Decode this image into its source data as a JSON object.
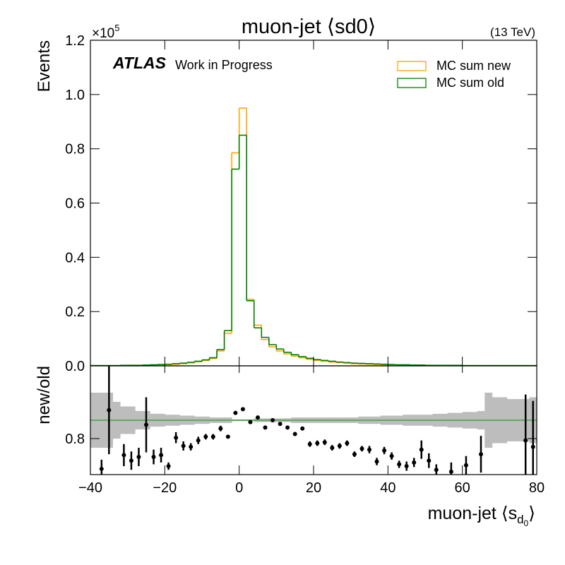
{
  "chart_data": [
    {
      "type": "histogram",
      "title": "muon-jet ⟨sd0⟩",
      "energy": "(13 TeV)",
      "experiment": "ATLAS",
      "status": "Work in Progress",
      "ylabel": "Events",
      "y_scale": {
        "base": "×10",
        "exponent": "5"
      },
      "bins": [
        -40,
        -38,
        -36,
        -34,
        -32,
        -30,
        -28,
        -26,
        -24,
        -22,
        -20,
        -18,
        -16,
        -14,
        -12,
        -10,
        -8,
        -6,
        -4,
        -2,
        0,
        2,
        4,
        6,
        8,
        10,
        12,
        14,
        16,
        18,
        20,
        22,
        24,
        26,
        28,
        30,
        32,
        34,
        36,
        38,
        40,
        42,
        44,
        46,
        48,
        50,
        52,
        54,
        56,
        58,
        60,
        62,
        64,
        66,
        68,
        70,
        72,
        74,
        76,
        78,
        80
      ],
      "xlim": [
        -40,
        80
      ],
      "ylim": [
        0,
        1.2
      ],
      "yticks": [
        {
          "value": 0,
          "label": "0.0"
        },
        0.2,
        0.4,
        0.6,
        0.8,
        {
          "value": 1,
          "label": "1.0"
        },
        1.2
      ],
      "legend": "upper right",
      "series": [
        {
          "name": "MC sum new",
          "color": "#ffa500",
          "values": [
            0.001,
            0.001,
            0.001,
            0.001,
            0.001,
            0.002,
            0.002,
            0.002,
            0.003,
            0.004,
            0.005,
            0.006,
            0.008,
            0.011,
            0.015,
            0.02,
            0.027,
            0.055,
            0.12,
            0.785,
            0.95,
            0.245,
            0.15,
            0.097,
            0.07,
            0.055,
            0.044,
            0.036,
            0.03,
            0.024,
            0.02,
            0.017,
            0.014,
            0.012,
            0.01,
            0.008,
            0.007,
            0.006,
            0.005,
            0.004,
            0.004,
            0.003,
            0.003,
            0.002,
            0.002,
            0.002,
            0.001,
            0.001,
            0.001,
            0.001,
            0.001,
            0.001,
            0.001,
            0.001,
            0.001,
            0.001,
            0.001,
            0.001,
            0.001,
            0.001
          ]
        },
        {
          "name": "MC sum old",
          "color": "#008000",
          "values": [
            0.001,
            0.001,
            0.001,
            0.001,
            0.002,
            0.002,
            0.002,
            0.003,
            0.004,
            0.005,
            0.006,
            0.008,
            0.01,
            0.013,
            0.017,
            0.022,
            0.03,
            0.06,
            0.13,
            0.725,
            0.85,
            0.24,
            0.14,
            0.105,
            0.078,
            0.062,
            0.05,
            0.041,
            0.034,
            0.028,
            0.023,
            0.02,
            0.017,
            0.014,
            0.012,
            0.01,
            0.009,
            0.008,
            0.007,
            0.006,
            0.005,
            0.004,
            0.004,
            0.003,
            0.003,
            0.002,
            0.002,
            0.002,
            0.002,
            0.002,
            0.001,
            0.001,
            0.001,
            0.001,
            0.001,
            0.001,
            0.001,
            0.001,
            0.001,
            0.001
          ]
        }
      ]
    },
    {
      "type": "ratio",
      "ylabel": "new/old",
      "xlabel": {
        "text": "muon-jet ⟨s",
        "sub": "d",
        "subsub": "0",
        "close": "⟩"
      },
      "x": [
        -39,
        -37,
        -35,
        -33,
        -31,
        -29,
        -27,
        -25,
        -23,
        -21,
        -19,
        -17,
        -15,
        -13,
        -11,
        -9,
        -7,
        -5,
        -3,
        -1,
        1,
        3,
        5,
        7,
        9,
        11,
        13,
        15,
        17,
        19,
        21,
        23,
        25,
        27,
        29,
        31,
        33,
        35,
        37,
        39,
        41,
        43,
        45,
        47,
        49,
        51,
        53,
        55,
        57,
        59,
        61,
        63,
        65,
        67,
        69,
        71,
        73,
        75,
        77,
        79
      ],
      "values": [
        null,
        0.47,
        1.11,
        null,
        0.62,
        0.56,
        0.6,
        0.95,
        0.6,
        0.62,
        0.5,
        0.81,
        0.72,
        0.71,
        0.78,
        0.82,
        0.82,
        0.91,
        0.82,
        1.08,
        1.12,
        0.98,
        1.03,
        0.92,
        1.0,
        0.96,
        0.92,
        0.85,
        0.91,
        0.74,
        0.75,
        0.76,
        0.7,
        0.72,
        0.75,
        0.63,
        0.69,
        0.68,
        0.55,
        0.67,
        0.61,
        0.52,
        0.5,
        0.54,
        0.68,
        0.56,
        0.46,
        null,
        0.44,
        null,
        0.51,
        null,
        0.63,
        null,
        null,
        null,
        null,
        null,
        0.78,
        0.71
      ],
      "errors": [
        null,
        0.1,
        0.48,
        null,
        0.12,
        0.1,
        0.1,
        0.3,
        0.08,
        0.08,
        0.04,
        0.06,
        0.05,
        0.04,
        0.04,
        0.03,
        0.03,
        0.03,
        0.02,
        0.01,
        0.01,
        0.01,
        0.01,
        0.02,
        0.02,
        0.02,
        0.02,
        0.02,
        0.02,
        0.03,
        0.03,
        0.03,
        0.03,
        0.03,
        0.03,
        0.03,
        0.03,
        0.04,
        0.04,
        0.04,
        0.04,
        0.04,
        0.05,
        0.05,
        0.1,
        0.08,
        0.06,
        null,
        0.1,
        null,
        0.1,
        null,
        0.2,
        null,
        null,
        null,
        null,
        null,
        0.5,
        0.5
      ],
      "band": [
        0.3,
        0.3,
        0.3,
        0.2,
        0.15,
        0.15,
        0.1,
        0.1,
        0.07,
        0.07,
        0.06,
        0.06,
        0.05,
        0.05,
        0.04,
        0.04,
        0.03,
        0.03,
        0.03,
        0.01,
        0.01,
        0.01,
        0.02,
        0.02,
        0.02,
        0.02,
        0.02,
        0.03,
        0.03,
        0.03,
        0.03,
        0.03,
        0.03,
        0.03,
        0.03,
        0.03,
        0.04,
        0.04,
        0.04,
        0.05,
        0.05,
        0.05,
        0.06,
        0.06,
        0.06,
        0.06,
        0.07,
        0.07,
        0.08,
        0.08,
        0.09,
        0.09,
        0.1,
        0.3,
        0.25,
        0.25,
        0.23,
        0.23,
        0.23,
        0.25
      ],
      "band_color": "#bdbdbd",
      "point_color": "#000000",
      "reference": 1,
      "reference_color": "#2ca02c",
      "xlim": [
        -40,
        80
      ],
      "xticks": [
        {
          "value": -40,
          "label": "−40"
        },
        {
          "value": -20,
          "label": "−20"
        },
        0,
        20,
        40,
        60,
        80
      ],
      "ylim": [
        0.408,
        1.592
      ],
      "yticks": [
        0.8
      ]
    }
  ]
}
